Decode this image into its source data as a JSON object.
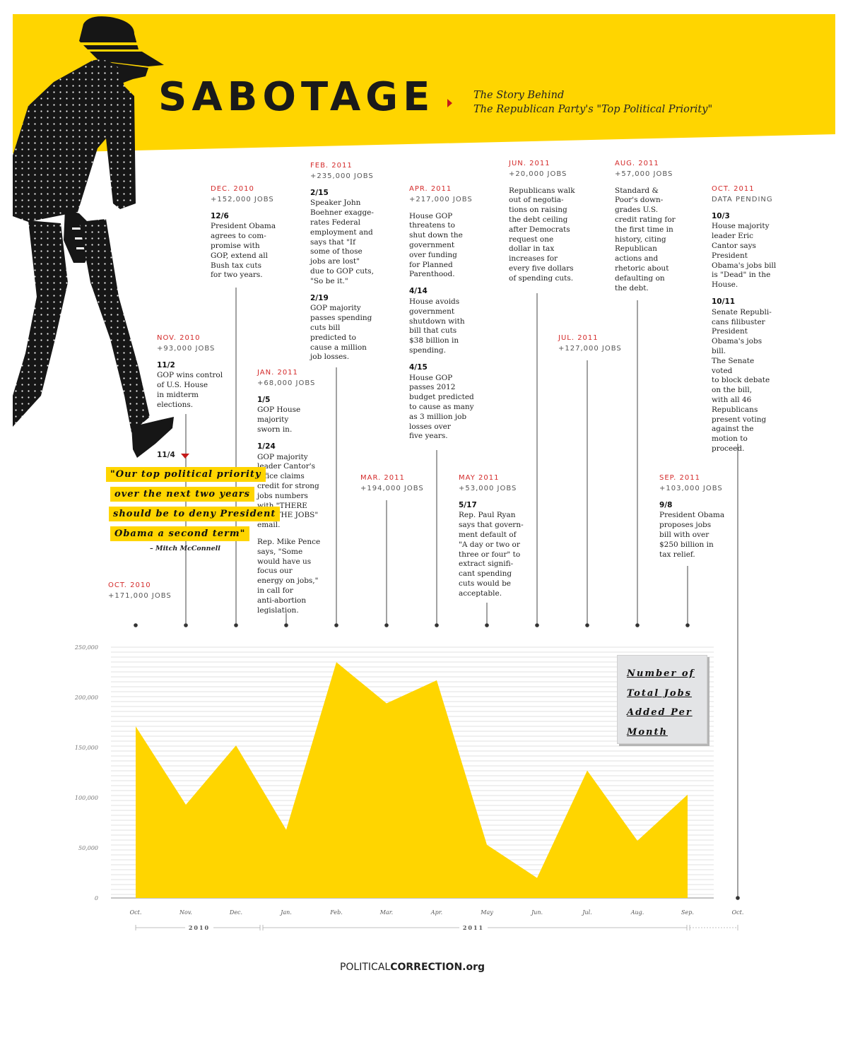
{
  "colors": {
    "yellow": "#ffd500",
    "red": "#d42a2a",
    "dark": "#1a1a1a",
    "legend_bg": "#e3e4e6",
    "grid": "#cccccc"
  },
  "header": {
    "title": "SABOTAGE",
    "subtitle_line1": "The Story Behind",
    "subtitle_line2": "The Republican Party's \"Top Political Priority\""
  },
  "events": [
    {
      "month": "OCT. 2010",
      "jobs": "+171,000 JOBS",
      "items": []
    },
    {
      "month": "NOV. 2010",
      "jobs": "+93,000 JOBS",
      "items": [
        {
          "date": "11/2",
          "text": "GOP wins control\nof U.S. House\nin midterm\nelections."
        }
      ]
    },
    {
      "month": "DEC. 2010",
      "jobs": "+152,000 JOBS",
      "items": [
        {
          "date": "12/6",
          "text": "President Obama\nagrees to com-\npromise with\nGOP, extend all\nBush tax cuts\nfor two years."
        }
      ]
    },
    {
      "month": "JAN. 2011",
      "jobs": "+68,000 JOBS",
      "items": [
        {
          "date": "1/5",
          "text": "GOP House\nmajority\nsworn in."
        },
        {
          "date": "1/24",
          "text": "GOP majority\nleader Cantor's\noffice claims\ncredit for strong\njobs numbers\nwith \"THERE\nARE THE JOBS\"\nemail."
        },
        {
          "date": "",
          "text": "Rep. Mike Pence\nsays, \"Some\nwould have us\nfocus our\nenergy on jobs,\"\nin call for\nanti-abortion\nlegislation."
        }
      ]
    },
    {
      "month": "FEB. 2011",
      "jobs": "+235,000 JOBS",
      "items": [
        {
          "date": "2/15",
          "text": "Speaker John\nBoehner exagge-\nrates Federal\nemployment and\nsays that \"If\nsome of those\njobs are lost\"\ndue to GOP cuts,\n\"So be it.\""
        },
        {
          "date": "2/19",
          "text": "GOP majority\npasses spending\ncuts bill\npredicted to\ncause a million\njob losses."
        }
      ]
    },
    {
      "month": "MAR. 2011",
      "jobs": "+194,000 JOBS",
      "items": []
    },
    {
      "month": "APR. 2011",
      "jobs": "+217,000 JOBS",
      "items": [
        {
          "date": "",
          "text": "House GOP\nthreatens to\nshut down the\ngovernment\nover funding\nfor Planned\nParenthood."
        },
        {
          "date": "4/14",
          "text": "House avoids\ngovernment\nshutdown with\nbill that cuts\n$38 billion in\nspending."
        },
        {
          "date": "4/15",
          "text": "House GOP\npasses 2012\nbudget predicted\nto cause as many\nas 3 million job\nlosses over\nfive years."
        }
      ]
    },
    {
      "month": "MAY 2011",
      "jobs": "+53,000 JOBS",
      "items": [
        {
          "date": "5/17",
          "text": "Rep. Paul Ryan\nsays that govern-\nment default of\n\"A day or two or\nthree or four\" to\nextract signifi-\ncant spending\ncuts would be\nacceptable."
        }
      ]
    },
    {
      "month": "JUN. 2011",
      "jobs": "+20,000 JOBS",
      "items": [
        {
          "date": "",
          "text": "Republicans walk\nout of negotia-\ntions on raising\nthe debt ceiling\nafter Democrats\nrequest one\ndollar in tax\nincreases for\nevery five dollars\nof spending cuts."
        }
      ]
    },
    {
      "month": "JUL. 2011",
      "jobs": "+127,000 JOBS",
      "items": []
    },
    {
      "month": "AUG. 2011",
      "jobs": "+57,000 JOBS",
      "items": [
        {
          "date": "",
          "text": "Standard &\nPoor's  down-\ngrades U.S.\ncredit rating for\nthe first time in\nhistory, citing\nRepublican\nactions and\nrhetoric about\ndefaulting on\nthe debt."
        }
      ]
    },
    {
      "month": "SEP. 2011",
      "jobs": "+103,000 JOBS",
      "items": [
        {
          "date": "9/8",
          "text": "President Obama\nproposes jobs\nbill with over\n$250 billion in\ntax relief."
        }
      ]
    },
    {
      "month": "OCT. 2011",
      "jobs": "DATA PENDING",
      "items": [
        {
          "date": "10/3",
          "text": "House majority\nleader Eric\nCantor says\nPresident\nObama's jobs bill\nis \"Dead\" in the\nHouse."
        },
        {
          "date": "10/11",
          "text": "Senate Republi-\ncans filibuster\nPresident\nObama's jobs bill.\nThe Senate voted\nto block debate\non the bill,\nwith all 46\nRepublicans\npresent voting\nagainst the\nmotion to\nproceed."
        }
      ]
    }
  ],
  "quote": {
    "date": "11/4",
    "lines": [
      "\"Our top political priority",
      "over the next two years",
      "should be to deny President",
      "Obama a second term\""
    ],
    "attribution": "– Mitch McConnell"
  },
  "chart_data": {
    "type": "area",
    "categories": [
      "Oct.",
      "Nov.",
      "Dec.",
      "Jan.",
      "Feb.",
      "Mar.",
      "Apr.",
      "May",
      "Jun.",
      "Jul.",
      "Aug.",
      "Sep.",
      "Oct."
    ],
    "values": [
      171000,
      93000,
      152000,
      68000,
      235000,
      194000,
      217000,
      53000,
      20000,
      127000,
      57000,
      103000,
      null
    ],
    "yticks": [
      0,
      50000,
      100000,
      150000,
      200000,
      250000
    ],
    "ytick_labels": [
      "0",
      "50,000",
      "100,000",
      "150,000",
      "200,000",
      "250,000"
    ],
    "ylim": [
      0,
      250000
    ],
    "legend": "Number of\nTotal Jobs\nAdded Per\nMonth",
    "legend_placement": "top-right",
    "year_labels": [
      "2010",
      "2011"
    ],
    "grid": true
  },
  "footer": {
    "part1": "POLITICAL",
    "part2": "CORRECTION",
    "part3": ".org"
  }
}
